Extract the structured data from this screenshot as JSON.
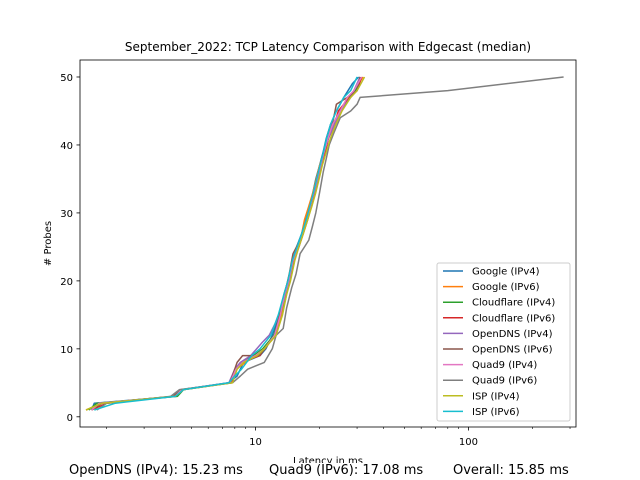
{
  "chart_data": {
    "type": "line",
    "title": "September_2022: TCP Latency Comparison with Edgecast (median)",
    "xlabel": "Latency in ms",
    "ylabel": "# Probes",
    "xscale": "log",
    "xlim": [
      1.5,
      320
    ],
    "ylim": [
      -1.5,
      52.5
    ],
    "xticks": [
      {
        "value": 10,
        "label": "10"
      },
      {
        "value": 100,
        "label": "100"
      }
    ],
    "yticks": [
      0,
      10,
      20,
      30,
      40,
      50
    ],
    "grid": false,
    "legend_position": "lower right",
    "series": [
      {
        "name": "Google (IPv4)",
        "color": "#1f77b4",
        "points": [
          [
            1.7,
            1
          ],
          [
            1.75,
            2
          ],
          [
            4.2,
            3
          ],
          [
            4.5,
            4
          ],
          [
            7.5,
            5
          ],
          [
            8.2,
            6
          ],
          [
            8.8,
            8
          ],
          [
            10.5,
            9
          ],
          [
            11.2,
            10
          ],
          [
            12,
            12
          ],
          [
            13,
            15
          ],
          [
            13.5,
            17
          ],
          [
            14.2,
            20
          ],
          [
            15,
            23
          ],
          [
            15.6,
            25
          ],
          [
            16.5,
            27
          ],
          [
            17.2,
            29
          ],
          [
            18,
            31
          ],
          [
            18.6,
            33
          ],
          [
            19.2,
            35
          ],
          [
            20,
            37
          ],
          [
            20.8,
            39
          ],
          [
            21.5,
            41
          ],
          [
            22.5,
            43
          ],
          [
            24,
            45
          ],
          [
            26,
            47
          ],
          [
            28.5,
            49
          ],
          [
            30.5,
            50
          ]
        ]
      },
      {
        "name": "Google (IPv6)",
        "color": "#ff7f0e",
        "points": [
          [
            1.6,
            1
          ],
          [
            1.9,
            2
          ],
          [
            4.1,
            3
          ],
          [
            4.5,
            4
          ],
          [
            7.8,
            5
          ],
          [
            8.1,
            7
          ],
          [
            9,
            8
          ],
          [
            10,
            9
          ],
          [
            11,
            10
          ],
          [
            12.5,
            12
          ],
          [
            13.3,
            15
          ],
          [
            14,
            18
          ],
          [
            14.5,
            20
          ],
          [
            15,
            22
          ],
          [
            15.5,
            24
          ],
          [
            16.5,
            27
          ],
          [
            17,
            29
          ],
          [
            17.8,
            31
          ],
          [
            18.6,
            33
          ],
          [
            19.3,
            35
          ],
          [
            20,
            37
          ],
          [
            21,
            39
          ],
          [
            22,
            41
          ],
          [
            23.5,
            43
          ],
          [
            25,
            45
          ],
          [
            27.5,
            47
          ],
          [
            29,
            48
          ],
          [
            32,
            50
          ]
        ]
      },
      {
        "name": "Cloudflare (IPv4)",
        "color": "#2ca02c",
        "points": [
          [
            1.65,
            1
          ],
          [
            1.8,
            2
          ],
          [
            4.3,
            3
          ],
          [
            4.6,
            4
          ],
          [
            7.6,
            5
          ],
          [
            8,
            7
          ],
          [
            8.6,
            8
          ],
          [
            9.8,
            9
          ],
          [
            10.8,
            10
          ],
          [
            12.2,
            12
          ],
          [
            13.1,
            15
          ],
          [
            13.8,
            18
          ],
          [
            14.3,
            20
          ],
          [
            15.2,
            23
          ],
          [
            15.9,
            25
          ],
          [
            16.7,
            27
          ],
          [
            17.5,
            29
          ],
          [
            18.2,
            31
          ],
          [
            18.9,
            33
          ],
          [
            19.5,
            35
          ],
          [
            20.2,
            37
          ],
          [
            21,
            39
          ],
          [
            21.8,
            41
          ],
          [
            23,
            43
          ],
          [
            25,
            45
          ],
          [
            27.8,
            47
          ],
          [
            29.5,
            48
          ],
          [
            31,
            50
          ]
        ]
      },
      {
        "name": "Cloudflare (IPv6)",
        "color": "#d62728",
        "points": [
          [
            1.7,
            1
          ],
          [
            2,
            2
          ],
          [
            4.2,
            3
          ],
          [
            4.6,
            4
          ],
          [
            7.7,
            5
          ],
          [
            8.1,
            7
          ],
          [
            8.5,
            8
          ],
          [
            10.5,
            9
          ],
          [
            11,
            10
          ],
          [
            12.4,
            12
          ],
          [
            13,
            15
          ],
          [
            13.6,
            18
          ],
          [
            14.2,
            20
          ],
          [
            15.1,
            23
          ],
          [
            16,
            25
          ],
          [
            16.8,
            27
          ],
          [
            17.6,
            29
          ],
          [
            18.3,
            31
          ],
          [
            19,
            33
          ],
          [
            19.7,
            35
          ],
          [
            20.5,
            37
          ],
          [
            21.3,
            39
          ],
          [
            22,
            41
          ],
          [
            23.5,
            43
          ],
          [
            24.5,
            45
          ],
          [
            26,
            46
          ],
          [
            30,
            48
          ],
          [
            31.5,
            50
          ]
        ]
      },
      {
        "name": "OpenDNS (IPv4)",
        "color": "#9467bd",
        "points": [
          [
            1.7,
            1
          ],
          [
            1.85,
            2
          ],
          [
            4.2,
            3
          ],
          [
            4.5,
            4
          ],
          [
            7.5,
            5
          ],
          [
            8,
            7
          ],
          [
            8.5,
            8
          ],
          [
            9.5,
            9
          ],
          [
            10.8,
            11
          ],
          [
            11.6,
            12
          ],
          [
            12.5,
            14
          ],
          [
            13.2,
            16
          ],
          [
            13.9,
            18
          ],
          [
            14.4,
            20
          ],
          [
            15,
            23
          ],
          [
            16,
            25
          ],
          [
            16.7,
            27
          ],
          [
            17.4,
            29
          ],
          [
            18.2,
            31
          ],
          [
            19,
            33
          ],
          [
            19.6,
            35
          ],
          [
            20.3,
            37
          ],
          [
            21,
            39
          ],
          [
            22,
            41
          ],
          [
            23.5,
            43
          ],
          [
            25,
            45
          ],
          [
            28,
            47
          ],
          [
            31,
            50
          ]
        ]
      },
      {
        "name": "OpenDNS (IPv6)",
        "color": "#8c564b",
        "points": [
          [
            1.7,
            1
          ],
          [
            1.9,
            2
          ],
          [
            4.1,
            3
          ],
          [
            4.5,
            4
          ],
          [
            7.6,
            5
          ],
          [
            8.2,
            8
          ],
          [
            8.7,
            9
          ],
          [
            10.4,
            9
          ],
          [
            11.1,
            10
          ],
          [
            12.3,
            12
          ],
          [
            13,
            15
          ],
          [
            13.7,
            18
          ],
          [
            14.4,
            21
          ],
          [
            15,
            24
          ],
          [
            16.2,
            26
          ],
          [
            17,
            28
          ],
          [
            17.8,
            30
          ],
          [
            18.5,
            32
          ],
          [
            19.1,
            34
          ],
          [
            19.8,
            36
          ],
          [
            20.5,
            38
          ],
          [
            21.4,
            40
          ],
          [
            22.4,
            42
          ],
          [
            23.3,
            44
          ],
          [
            24,
            46
          ],
          [
            27,
            47
          ],
          [
            30,
            48
          ],
          [
            31,
            50
          ]
        ]
      },
      {
        "name": "Quad9 (IPv4)",
        "color": "#e377c2",
        "points": [
          [
            1.7,
            1
          ],
          [
            1.85,
            2
          ],
          [
            4.2,
            3
          ],
          [
            4.5,
            4
          ],
          [
            7.6,
            5
          ],
          [
            8.1,
            7
          ],
          [
            8.7,
            8
          ],
          [
            10,
            9
          ],
          [
            11,
            10
          ],
          [
            12.3,
            12
          ],
          [
            13.1,
            15
          ],
          [
            13.7,
            18
          ],
          [
            14.3,
            20
          ],
          [
            15,
            23
          ],
          [
            15.8,
            25
          ],
          [
            16.6,
            27
          ],
          [
            17.4,
            29
          ],
          [
            18.1,
            31
          ],
          [
            18.8,
            33
          ],
          [
            19.5,
            35
          ],
          [
            20.2,
            37
          ],
          [
            21,
            39
          ],
          [
            21.9,
            41
          ],
          [
            23,
            43
          ],
          [
            25,
            45
          ],
          [
            27,
            47
          ],
          [
            29,
            48
          ],
          [
            31.5,
            50
          ]
        ]
      },
      {
        "name": "Quad9 (IPv6)",
        "color": "#7f7f7f",
        "points": [
          [
            1.8,
            1
          ],
          [
            2,
            2
          ],
          [
            4,
            3
          ],
          [
            4.4,
            4
          ],
          [
            7.8,
            5
          ],
          [
            8.5,
            6
          ],
          [
            9.2,
            7
          ],
          [
            11,
            8
          ],
          [
            12,
            10
          ],
          [
            12.5,
            12
          ],
          [
            13.5,
            13
          ],
          [
            14,
            16
          ],
          [
            14.8,
            19
          ],
          [
            15.5,
            21
          ],
          [
            16.2,
            24
          ],
          [
            17,
            25
          ],
          [
            17.8,
            26
          ],
          [
            18.5,
            28
          ],
          [
            19.2,
            30
          ],
          [
            20,
            33
          ],
          [
            20.8,
            36
          ],
          [
            21.5,
            38
          ],
          [
            22.2,
            40
          ],
          [
            23.5,
            42
          ],
          [
            25,
            44
          ],
          [
            28,
            45
          ],
          [
            30,
            46
          ],
          [
            31,
            47
          ],
          [
            80,
            48
          ],
          [
            280,
            50
          ]
        ]
      },
      {
        "name": "ISP (IPv4)",
        "color": "#bcbd22",
        "points": [
          [
            1.6,
            1
          ],
          [
            1.9,
            2
          ],
          [
            4.2,
            3
          ],
          [
            4.6,
            4
          ],
          [
            7.8,
            5
          ],
          [
            8.2,
            7
          ],
          [
            8.8,
            8
          ],
          [
            10.2,
            9
          ],
          [
            11,
            10
          ],
          [
            12.5,
            12
          ],
          [
            13.4,
            15
          ],
          [
            14,
            18
          ],
          [
            14.6,
            20
          ],
          [
            15.3,
            23
          ],
          [
            16,
            25
          ],
          [
            16.8,
            27
          ],
          [
            17.6,
            29
          ],
          [
            18.4,
            31
          ],
          [
            19.2,
            33
          ],
          [
            19.9,
            35
          ],
          [
            20.6,
            37
          ],
          [
            21.5,
            39
          ],
          [
            22.5,
            41
          ],
          [
            23.8,
            43
          ],
          [
            25.5,
            45
          ],
          [
            28,
            47
          ],
          [
            30,
            48
          ],
          [
            32.5,
            50
          ]
        ]
      },
      {
        "name": "ISP (IPv6)",
        "color": "#17becf",
        "points": [
          [
            1.75,
            1
          ],
          [
            2.2,
            2
          ],
          [
            4.2,
            3
          ],
          [
            4.6,
            4
          ],
          [
            7.5,
            5
          ],
          [
            8,
            6
          ],
          [
            8.6,
            7
          ],
          [
            9.6,
            9
          ],
          [
            10.5,
            10
          ],
          [
            11.8,
            12
          ],
          [
            12.8,
            15
          ],
          [
            13.6,
            18
          ],
          [
            14.2,
            20
          ],
          [
            14.9,
            23
          ],
          [
            15.7,
            25
          ],
          [
            16.5,
            27
          ],
          [
            17.3,
            29
          ],
          [
            18,
            31
          ],
          [
            18.7,
            33
          ],
          [
            19.4,
            35
          ],
          [
            20.1,
            37
          ],
          [
            20.9,
            39
          ],
          [
            21.6,
            41
          ],
          [
            22.5,
            43
          ],
          [
            24,
            45
          ],
          [
            26,
            47
          ],
          [
            28,
            48
          ],
          [
            30,
            50
          ]
        ]
      }
    ]
  },
  "footer": {
    "stat1": "OpenDNS (IPv4): 15.23 ms",
    "stat2": "Quad9 (IPv6): 17.08 ms",
    "stat3": "Overall: 15.85 ms"
  }
}
